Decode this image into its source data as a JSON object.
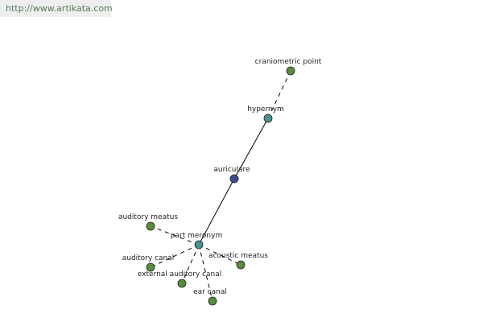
{
  "header": {
    "url": "http://www.artikata.com"
  },
  "nodes": [
    {
      "label": "craniometric point"
    },
    {
      "label": "hypernym"
    },
    {
      "label": "auriculare"
    },
    {
      "label": "part meronym"
    },
    {
      "label": "auditory meatus"
    },
    {
      "label": "acoustic meatus"
    },
    {
      "label": "auditory canal"
    },
    {
      "label": "external auditory canal"
    },
    {
      "label": "ear canal"
    }
  ]
}
